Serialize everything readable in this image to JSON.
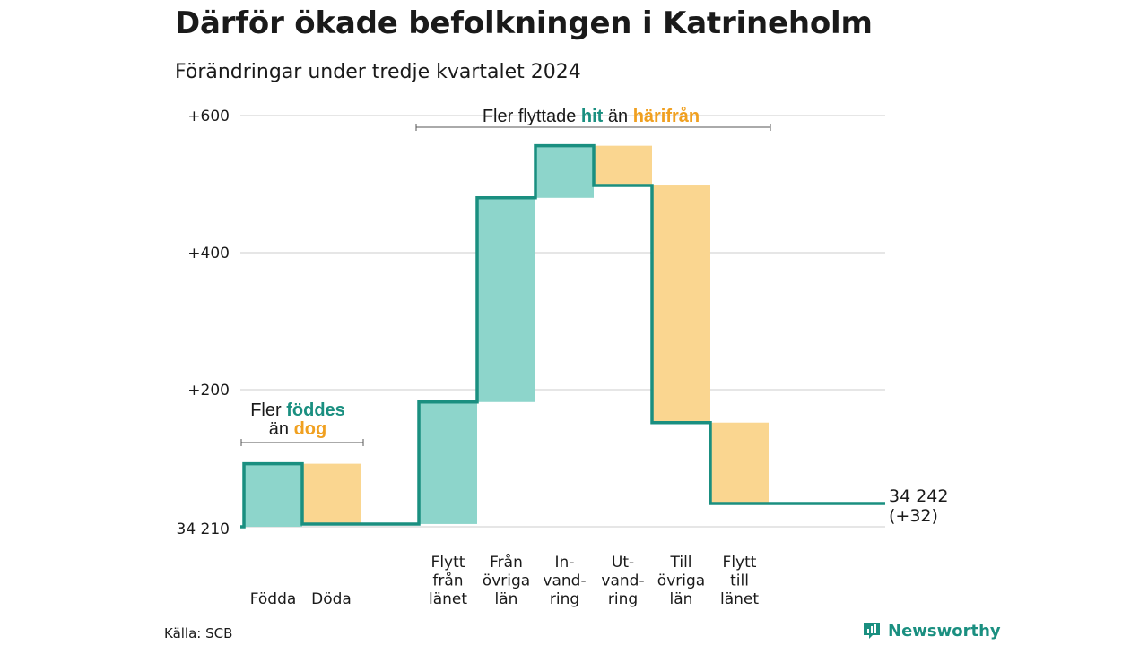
{
  "header": {
    "title": "Därför ökade befolkningen i Katrineholm",
    "subtitle": "Förändringar under tredje kvartalet 2024"
  },
  "colors": {
    "positive": "#8dd5cb",
    "negative": "#fad690",
    "line": "#1a8f80",
    "accent_positive_text": "#1a8f80",
    "accent_negative_text": "#f0a020",
    "grid": "#dddddd"
  },
  "chart_data": {
    "type": "waterfall",
    "base": 34210,
    "base_label": "34 210",
    "end_label": "34 242",
    "end_change_label": "(+32)",
    "ylim": [
      0,
      600
    ],
    "yticks": [
      {
        "value": 200,
        "label": "+200"
      },
      {
        "value": 400,
        "label": "+400"
      },
      {
        "value": 600,
        "label": "+600"
      }
    ],
    "grid": true,
    "steps": [
      {
        "lines": [
          "Födda"
        ],
        "change": 92,
        "sign": "positive"
      },
      {
        "lines": [
          "Döda"
        ],
        "change": -88,
        "sign": "negative"
      },
      {
        "lines": [
          "Flytt",
          "från",
          "länet"
        ],
        "change": 178,
        "sign": "positive"
      },
      {
        "lines": [
          "Från",
          "övriga",
          "län"
        ],
        "change": 298,
        "sign": "positive"
      },
      {
        "lines": [
          "In-",
          "vand-",
          "ring"
        ],
        "change": 76,
        "sign": "positive"
      },
      {
        "lines": [
          "Ut-",
          "vand-",
          "ring"
        ],
        "change": -58,
        "sign": "negative"
      },
      {
        "lines": [
          "Till",
          "övriga",
          "län"
        ],
        "change": -346,
        "sign": "negative"
      },
      {
        "lines": [
          "Flytt",
          "till",
          "länet"
        ],
        "change": -118,
        "sign": "negative"
      }
    ],
    "annotations": [
      {
        "id": "births",
        "parts": [
          {
            "line": 0,
            "text": "Fler ",
            "style": "plain"
          },
          {
            "line": 0,
            "text": "föddes",
            "style": "positive"
          },
          {
            "line": 1,
            "text": "än ",
            "style": "plain"
          },
          {
            "line": 1,
            "text": "dog",
            "style": "negative"
          }
        ]
      },
      {
        "id": "migration",
        "parts": [
          {
            "line": 0,
            "text": "Fler flyttade ",
            "style": "plain"
          },
          {
            "line": 0,
            "text": "hit",
            "style": "positive"
          },
          {
            "line": 0,
            "text": " än ",
            "style": "plain"
          },
          {
            "line": 0,
            "text": "härifrån",
            "style": "negative"
          }
        ]
      }
    ]
  },
  "footer": {
    "source": "Källa: SCB",
    "brand": "Newsworthy",
    "brand_icon": "bar-chart-logo-icon"
  }
}
